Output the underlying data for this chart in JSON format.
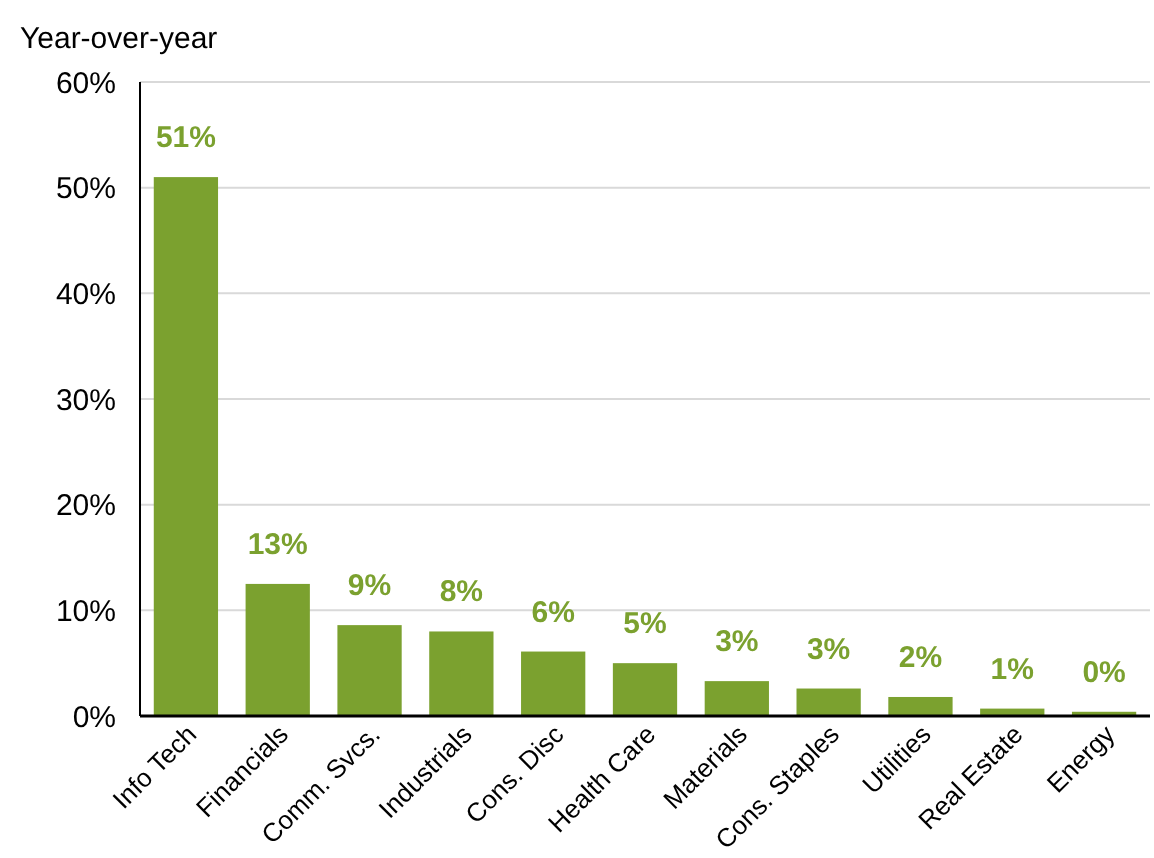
{
  "chart_data": {
    "type": "bar",
    "ylabel": "Year-over-year",
    "categories": [
      "Info Tech",
      "Financials",
      "Comm. Svcs.",
      "Industrials",
      "Cons. Disc",
      "Health Care",
      "Materials",
      "Cons. Staples",
      "Utilities",
      "Real Estate",
      "Energy"
    ],
    "values": [
      51.0,
      12.5,
      8.6,
      8.0,
      6.1,
      5.0,
      3.3,
      2.6,
      1.8,
      0.7,
      0.4
    ],
    "value_labels": [
      "51%",
      "13%",
      "9%",
      "8%",
      "6%",
      "5%",
      "3%",
      "3%",
      "2%",
      "1%",
      "0%"
    ],
    "color": "#7ba12f",
    "ylim": [
      0,
      60
    ],
    "yticks": [
      {
        "value": 0,
        "label": "0%"
      },
      {
        "value": 10,
        "label": "10%"
      },
      {
        "value": 20,
        "label": "20%"
      },
      {
        "value": 30,
        "label": "30%"
      },
      {
        "value": 40,
        "label": "40%"
      },
      {
        "value": 50,
        "label": "50%"
      },
      {
        "value": 60,
        "label": "60%"
      }
    ],
    "grid": "y"
  }
}
